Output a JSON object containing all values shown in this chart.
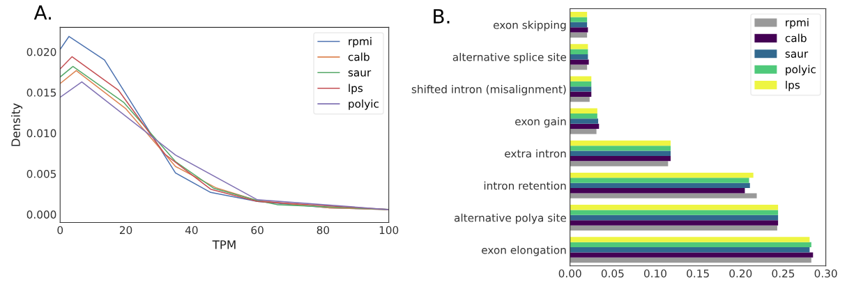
{
  "chart_data": [
    {
      "type": "line",
      "title": "A.",
      "xlabel": "TPM",
      "ylabel": "Density",
      "xlim": [
        0,
        100
      ],
      "xticks": [
        0,
        20,
        40,
        60,
        80,
        100
      ],
      "ylim": [
        -0.001,
        0.023
      ],
      "yticks": [
        {
          "value": 0,
          "label": "0.000"
        },
        {
          "value": 0.005,
          "label": "0.005"
        },
        {
          "value": 0.01,
          "label": "0.010"
        },
        {
          "value": 0.015,
          "label": "0.015"
        },
        {
          "value": 0.02,
          "label": "0.020"
        }
      ],
      "legend": "top right",
      "grid": false,
      "series": [
        {
          "name": "rpmi",
          "color": "#4c72b0",
          "x": [
            0,
            2.7,
            13.5,
            35.1,
            45.8,
            60,
            82,
            100
          ],
          "values": [
            0.0203,
            0.0219,
            0.019,
            0.0051,
            0.0027,
            0.0016,
            0.0008,
            0.0006
          ]
        },
        {
          "name": "calb",
          "color": "#dd8452",
          "x": [
            0,
            4.9,
            20,
            35.1,
            47.3,
            60,
            82,
            100
          ],
          "values": [
            0.0161,
            0.0177,
            0.013,
            0.0059,
            0.0033,
            0.0017,
            0.0008,
            0.0006
          ]
        },
        {
          "name": "saur",
          "color": "#55a868",
          "x": [
            0,
            3.9,
            19.3,
            35.1,
            46.8,
            60,
            66,
            100
          ],
          "values": [
            0.0169,
            0.0182,
            0.0138,
            0.0065,
            0.0032,
            0.0017,
            0.0012,
            0.0006
          ]
        },
        {
          "name": "lps",
          "color": "#c44e52",
          "x": [
            0,
            3.6,
            17.7,
            31.9,
            45.8,
            60,
            100
          ],
          "values": [
            0.0179,
            0.0194,
            0.0153,
            0.0074,
            0.0031,
            0.0016,
            0.0006
          ]
        },
        {
          "name": "polyic",
          "color": "#8172b3",
          "x": [
            0,
            6.6,
            35.1,
            60,
            100
          ],
          "values": [
            0.0144,
            0.0163,
            0.0073,
            0.0018,
            0.0006
          ]
        }
      ]
    },
    {
      "type": "bar",
      "orientation": "horizontal",
      "title": "B.",
      "categories": [
        "exon skipping",
        "alternative splice site",
        "shifted intron (misalignment)",
        "exon gain",
        "extra intron",
        "intron retention",
        "alternative polya site",
        "exon elongation"
      ],
      "xlim": [
        0,
        0.3
      ],
      "xticks": [
        {
          "value": 0,
          "label": "0.00"
        },
        {
          "value": 0.05,
          "label": "0.05"
        },
        {
          "value": 0.1,
          "label": "0.10"
        },
        {
          "value": 0.15,
          "label": "0.15"
        },
        {
          "value": 0.2,
          "label": "0.20"
        },
        {
          "value": 0.25,
          "label": "0.25"
        },
        {
          "value": 0.3,
          "label": "0.30"
        }
      ],
      "legend": "top right",
      "grid": false,
      "series": [
        {
          "name": "rpmi",
          "color": "#999999",
          "values": [
            0.02,
            0.02,
            0.023,
            0.031,
            0.115,
            0.219,
            0.243,
            0.283
          ]
        },
        {
          "name": "calb",
          "color": "#440154",
          "values": [
            0.021,
            0.022,
            0.025,
            0.034,
            0.118,
            0.205,
            0.244,
            0.285
          ]
        },
        {
          "name": "saur",
          "color": "#31688e",
          "values": [
            0.02,
            0.021,
            0.025,
            0.033,
            0.118,
            0.211,
            0.244,
            0.281
          ]
        },
        {
          "name": "polyic",
          "color": "#4fc97a",
          "values": [
            0.02,
            0.021,
            0.025,
            0.032,
            0.118,
            0.21,
            0.244,
            0.283
          ]
        },
        {
          "name": "lps",
          "color": "#eef542",
          "values": [
            0.02,
            0.021,
            0.025,
            0.032,
            0.118,
            0.215,
            0.244,
            0.281
          ]
        }
      ]
    }
  ]
}
